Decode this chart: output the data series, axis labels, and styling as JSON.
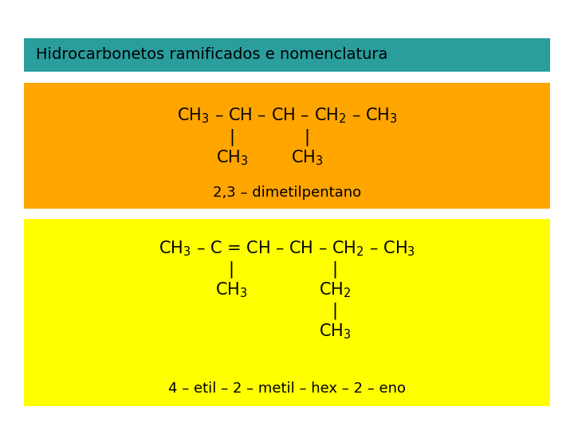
{
  "title": "Hidrocarbonetos ramificados e nomenclatura",
  "title_bg": "#2a9d9d",
  "title_color": "#000000",
  "title_fontsize": 14,
  "box1_bg": "#FFA500",
  "box2_bg": "#FFFF00",
  "fig_bg": "#FFFFFF",
  "formula1_label": "2,3 – dimetilpentano",
  "formula2_label": "4 – etil – 2 – metil – hex – 2 – eno"
}
